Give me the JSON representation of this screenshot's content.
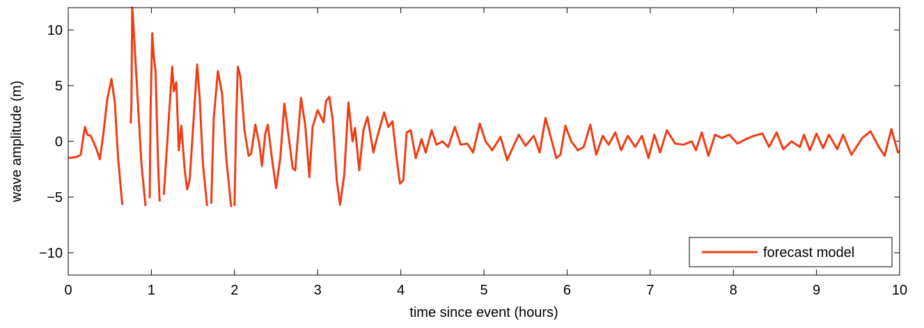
{
  "chart_data": {
    "type": "line",
    "xlabel": "time since event (hours)",
    "ylabel": "wave amplitude (m)",
    "xlim": [
      0,
      10
    ],
    "ylim": [
      -12,
      12
    ],
    "xticks": [
      0,
      1,
      2,
      3,
      4,
      5,
      6,
      7,
      8,
      9,
      10
    ],
    "yticks": [
      {
        "value": -10,
        "label": "−10"
      },
      {
        "value": -5,
        "label": "−5"
      },
      0,
      5,
      10
    ],
    "legend": "lower right",
    "series": [
      {
        "name": "forecast model",
        "color": "#f03c14",
        "x": [
          0,
          0.1,
          0.15,
          0.2,
          0.23,
          0.27,
          0.33,
          0.38,
          0.42,
          0.47,
          0.52,
          0.56,
          0.6,
          0.65,
          0.7,
          0.75,
          0.76,
          0.77,
          0.78,
          0.83,
          0.88,
          0.93,
          0.955,
          0.98,
          0.99,
          1.01,
          1.03,
          1.05,
          1.08,
          1.1,
          1.125,
          1.15,
          1.2,
          1.25,
          1.27,
          1.3,
          1.33,
          1.36,
          1.4,
          1.43,
          1.46,
          1.5,
          1.55,
          1.58,
          1.62,
          1.67,
          1.695,
          1.72,
          1.75,
          1.8,
          1.85,
          1.9,
          1.96,
          1.98,
          2.0,
          2.02,
          2.04,
          2.07,
          2.12,
          2.17,
          2.2,
          2.25,
          2.3,
          2.33,
          2.37,
          2.4,
          2.45,
          2.5,
          2.55,
          2.6,
          2.65,
          2.7,
          2.73,
          2.8,
          2.85,
          2.9,
          2.94,
          3.0,
          3.07,
          3.1,
          3.14,
          3.18,
          3.23,
          3.27,
          3.32,
          3.37,
          3.42,
          3.45,
          3.5,
          3.55,
          3.6,
          3.67,
          3.72,
          3.8,
          3.85,
          3.9,
          3.95,
          3.99,
          4.03,
          4.07,
          4.12,
          4.18,
          4.25,
          4.3,
          4.37,
          4.43,
          4.5,
          4.57,
          4.65,
          4.72,
          4.8,
          4.87,
          4.95,
          5.02,
          5.1,
          5.2,
          5.28,
          5.35,
          5.42,
          5.5,
          5.6,
          5.67,
          5.74,
          5.8,
          5.87,
          5.92,
          5.98,
          6.05,
          6.13,
          6.2,
          6.28,
          6.35,
          6.43,
          6.5,
          6.58,
          6.65,
          6.73,
          6.82,
          6.9,
          6.98,
          7.05,
          7.12,
          7.2,
          7.3,
          7.4,
          7.5,
          7.55,
          7.62,
          7.7,
          7.78,
          7.86,
          7.95,
          8.05,
          8.15,
          8.25,
          8.35,
          8.43,
          8.52,
          8.6,
          8.7,
          8.8,
          8.85,
          8.92,
          9.0,
          9.08,
          9.15,
          9.25,
          9.32,
          9.42,
          9.55,
          9.65,
          9.75,
          9.82,
          9.9,
          9.98,
          10
        ],
        "values": [
          -1.5,
          -1.4,
          -1.2,
          1.3,
          0.6,
          0.5,
          -0.5,
          -1.6,
          0.5,
          3.8,
          5.6,
          3.5,
          -1.5,
          -5.7,
          null,
          1.6,
          3,
          12,
          11,
          4.5,
          -2,
          -5.8,
          null,
          -5.1,
          2.5,
          9.7,
          7.5,
          6.3,
          -2,
          -5.4,
          null,
          -4.8,
          1,
          6.7,
          4.5,
          5.3,
          -0.8,
          1.4,
          -2.5,
          -4.3,
          -3.5,
          1,
          6.9,
          4,
          -2,
          -5.8,
          null,
          -5.6,
          2,
          6.3,
          4.3,
          -1.5,
          -5.9,
          null,
          -5.8,
          2,
          6.7,
          5.8,
          1,
          -1.3,
          -1.1,
          1.5,
          -0.3,
          -2.2,
          0.7,
          1.5,
          -1.5,
          -4.2,
          -1.5,
          3.4,
          0.5,
          -2.4,
          -2.6,
          3.9,
          1.5,
          -3.2,
          1.3,
          2.8,
          1.7,
          3.6,
          4,
          2,
          -3.5,
          -5.7,
          -3,
          3.5,
          0,
          1.2,
          -2.6,
          1,
          2.2,
          -1,
          0.5,
          2.6,
          1.3,
          1.8,
          -1.5,
          -3.8,
          -3.5,
          0.8,
          1,
          -1.5,
          0.2,
          -1,
          1,
          -0.3,
          0,
          -0.5,
          1.3,
          -0.3,
          -0.2,
          -1,
          1.6,
          0,
          -0.8,
          0.4,
          -1.7,
          -0.5,
          0.6,
          -0.4,
          0.5,
          -1,
          2.1,
          0.5,
          -1.5,
          -1.2,
          1.4,
          0,
          -0.8,
          -0.5,
          1.5,
          -1.2,
          0.5,
          -0.3,
          0.8,
          -0.8,
          0.5,
          -0.5,
          0.5,
          -1.5,
          0.6,
          -1,
          1,
          -0.2,
          -0.3,
          0,
          -0.8,
          0.8,
          -1.3,
          0.6,
          0.3,
          0.6,
          -0.2,
          0.2,
          0.5,
          0.7,
          -0.5,
          0.8,
          -0.7,
          0,
          -0.5,
          0.6,
          -0.8,
          0.7,
          -0.6,
          0.6,
          -0.7,
          0.6,
          -1.2,
          0.3,
          0.9,
          -0.5,
          -1.3,
          1.1,
          -1,
          -0.9
        ]
      }
    ]
  }
}
